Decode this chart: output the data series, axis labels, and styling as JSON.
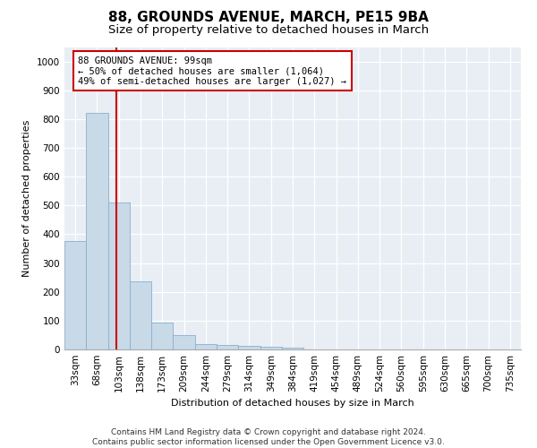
{
  "title": "88, GROUNDS AVENUE, MARCH, PE15 9BA",
  "subtitle": "Size of property relative to detached houses in March",
  "xlabel": "Distribution of detached houses by size in March",
  "ylabel": "Number of detached properties",
  "bin_labels": [
    "33sqm",
    "68sqm",
    "103sqm",
    "138sqm",
    "173sqm",
    "209sqm",
    "244sqm",
    "279sqm",
    "314sqm",
    "349sqm",
    "384sqm",
    "419sqm",
    "454sqm",
    "489sqm",
    "524sqm",
    "560sqm",
    "595sqm",
    "630sqm",
    "665sqm",
    "700sqm",
    "735sqm"
  ],
  "bar_values": [
    375,
    820,
    510,
    235,
    92,
    50,
    20,
    15,
    12,
    8,
    5,
    0,
    0,
    0,
    0,
    0,
    0,
    0,
    0,
    0,
    0
  ],
  "bar_color": "#c8d9e8",
  "bar_edgecolor": "#8ab0cc",
  "vline_color": "#cc0000",
  "annotation_text": "88 GROUNDS AVENUE: 99sqm\n← 50% of detached houses are smaller (1,064)\n49% of semi-detached houses are larger (1,027) →",
  "annotation_box_facecolor": "#ffffff",
  "annotation_box_edgecolor": "#cc0000",
  "ylim": [
    0,
    1050
  ],
  "yticks": [
    0,
    100,
    200,
    300,
    400,
    500,
    600,
    700,
    800,
    900,
    1000
  ],
  "footer_line1": "Contains HM Land Registry data © Crown copyright and database right 2024.",
  "footer_line2": "Contains public sector information licensed under the Open Government Licence v3.0.",
  "plot_bg_color": "#e8eef4",
  "fig_bg_color": "#ffffff",
  "title_fontsize": 11,
  "subtitle_fontsize": 9.5,
  "axis_label_fontsize": 8,
  "tick_fontsize": 7.5,
  "footer_fontsize": 6.5,
  "annotation_fontsize": 7.5
}
